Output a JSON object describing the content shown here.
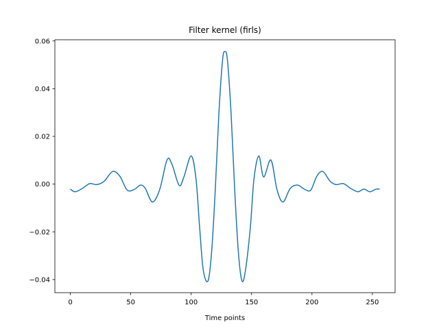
{
  "chart_data": {
    "type": "line",
    "title": "Filter kernel (firls)",
    "xlabel": "Time points",
    "ylabel": "",
    "xlim": [
      -12.8,
      268.8
    ],
    "ylim": [
      -0.0455,
      0.0605
    ],
    "xticks": [
      0,
      50,
      100,
      150,
      200,
      250
    ],
    "xtick_labels": [
      "0",
      "50",
      "100",
      "150",
      "200",
      "250"
    ],
    "yticks": [
      -0.04,
      -0.02,
      0.0,
      0.02,
      0.04,
      0.06
    ],
    "ytick_labels": [
      "−0.04",
      "−0.02",
      "0.00",
      "0.02",
      "0.04",
      "0.06"
    ],
    "grid": false,
    "series": [
      {
        "color": "#1f77b4",
        "x": [
          0,
          4,
          10,
          16,
          22,
          28,
          35,
          41,
          47,
          53,
          58,
          62,
          68,
          74,
          80,
          84,
          90,
          94,
          100,
          104,
          107,
          110,
          114,
          117,
          120,
          123,
          126,
          128,
          130,
          133,
          136,
          139,
          142,
          145,
          149,
          152,
          156,
          160,
          166,
          171,
          176,
          182,
          188,
          194,
          199,
          204,
          209,
          215,
          220,
          226,
          232,
          238,
          243,
          248,
          253,
          256
        ],
        "y": [
          -0.0021,
          -0.0032,
          -0.0018,
          0.0002,
          -0.0002,
          0.0012,
          0.0053,
          0.0033,
          -0.0025,
          -0.0022,
          -0.0004,
          -0.0018,
          -0.0075,
          -0.0022,
          0.0101,
          0.0085,
          -0.0005,
          0.003,
          0.0118,
          0.0022,
          -0.018,
          -0.036,
          -0.0405,
          -0.028,
          -0.002,
          0.03,
          0.052,
          0.0555,
          0.052,
          0.03,
          -0.002,
          -0.028,
          -0.0405,
          -0.036,
          -0.018,
          0.0022,
          0.0118,
          0.003,
          0.0101,
          -0.0022,
          -0.0075,
          -0.0018,
          -0.0004,
          -0.0022,
          -0.0025,
          0.0033,
          0.0053,
          0.0012,
          -0.0002,
          0.0002,
          -0.0018,
          -0.0032,
          -0.0021,
          -0.0032,
          -0.0021,
          -0.0021
        ]
      }
    ]
  }
}
